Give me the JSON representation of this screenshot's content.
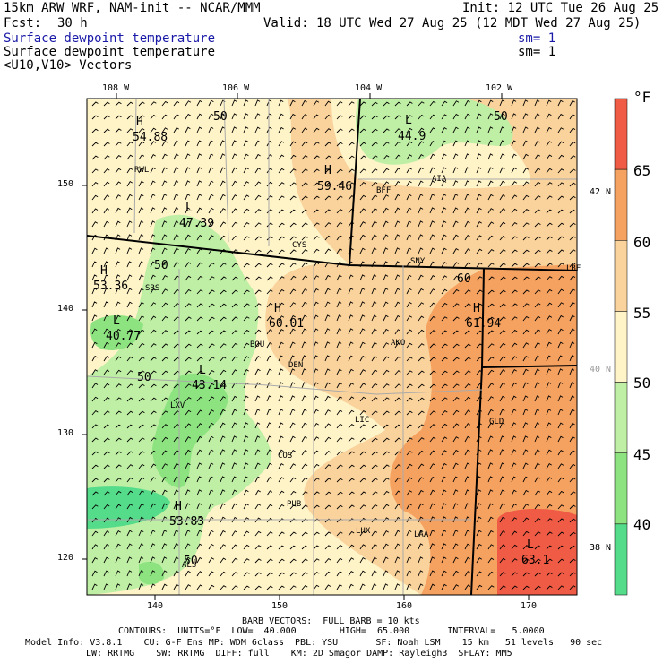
{
  "header": {
    "model": "15km ARW WRF, NAM-init -- NCAR/MMM",
    "init": "Init: 12 UTC Tue 26 Aug 25",
    "fcst_label": "Fcst:",
    "fcst_value": "30 h",
    "valid": "Valid: 18 UTC Wed 27 Aug 25 (12 MDT Wed 27 Aug 25)",
    "field1": "Surface dewpoint temperature",
    "field1_sm": "sm= 1",
    "field2": "Surface dewpoint temperature",
    "field2_sm": "sm= 1",
    "field3": "<U10,V10> Vectors"
  },
  "axes": {
    "top_lon": [
      "108 W",
      "106 W",
      "104 W",
      "102 W"
    ],
    "left_y": [
      "150",
      "140",
      "130",
      "120"
    ],
    "bottom_x": [
      "140",
      "150",
      "160",
      "170"
    ],
    "right_lat": [
      "42 N",
      "40 N",
      "38 N"
    ]
  },
  "stations": [
    "RWL",
    "BFF",
    "AIA",
    "CYS",
    "SNY",
    "LBF",
    "SBS",
    "BOU",
    "DEN",
    "AKO",
    "LXV",
    "LIC",
    "GLD",
    "COS",
    "PUB",
    "LHX",
    "LAA",
    "ALS"
  ],
  "extrema": [
    {
      "type": "H",
      "value": "54.88"
    },
    {
      "type": "L",
      "value": "44.9"
    },
    {
      "type": "H",
      "value": "59.46"
    },
    {
      "type": "L",
      "value": "47.39"
    },
    {
      "type": "H",
      "value": "53.36"
    },
    {
      "type": "H",
      "value": "60.01"
    },
    {
      "type": "H",
      "value": "61.94"
    },
    {
      "type": "L",
      "value": "40.77"
    },
    {
      "type": "L",
      "value": "43.14"
    },
    {
      "type": "H",
      "value": "53.83"
    },
    {
      "type": "L",
      "value": "63.1"
    }
  ],
  "contour_labels": [
    "50",
    "50",
    "50",
    "50",
    "60",
    "50"
  ],
  "legend": {
    "unit": "°F",
    "ticks": [
      "65",
      "60",
      "55",
      "50",
      "45",
      "40"
    ],
    "colors": [
      "#ef5b45",
      "#f5a261",
      "#fad29b",
      "#fff3c8",
      "#bfefa5",
      "#8ee381",
      "#55dc8a"
    ]
  },
  "footer": {
    "barb": "BARB VECTORS:  FULL BARB = 10 kts",
    "contours": "CONTOURS:  UNITS=°F  LOW=  40.000        HIGH=  65.000       INTERVAL=   5.0000",
    "model_info": "Model Info: V3.8.1    CU: G-F Ens MP: WDM 6class  PBL: YSU       SF: Noah LSM    15 km   51 levels   90 sec",
    "physics": "LW: RRTMG    SW: RRTMG  DIFF: full    KM: 2D Smagor DAMP: Rayleigh3  SFLAY: MM5"
  },
  "colors": {
    "c40_45": "#8ee381",
    "c45_50": "#bfefa5",
    "c50_55": "#fff3c8",
    "c55_60": "#fad29b",
    "c60_65": "#f5a261",
    "c65": "#ef5b45",
    "c35_40": "#55dc8a"
  }
}
